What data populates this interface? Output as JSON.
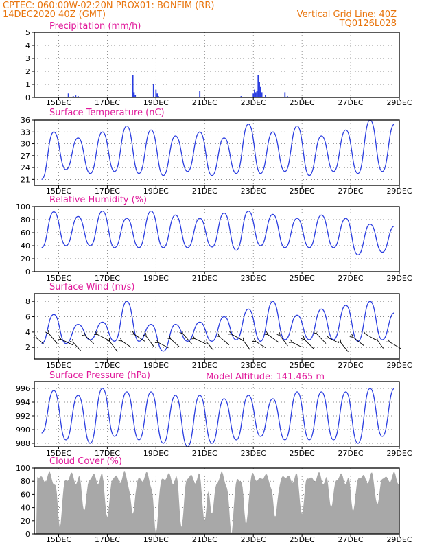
{
  "header": {
    "line1": "CPTEC:   060:00W-02:20N   PROX01: BONFIM (RR)",
    "line2_left": "14DEC2020 40Z (GMT)",
    "line2_right": "Vertical Grid Line: 40Z",
    "code": "TQ0126L028",
    "model_altitude": "Model Altitude: 141.465 m"
  },
  "colors": {
    "header": "#e8740c",
    "title": "#e0189a",
    "series": "#2a3de0",
    "arrow": "#000000",
    "cloud": "#a8a8a8",
    "grid": "#666666"
  },
  "x_ticks": [
    "15DEC",
    "17DEC",
    "19DEC",
    "21DEC",
    "23DEC",
    "25DEC",
    "27DEC",
    "29DEC"
  ],
  "chart_data": [
    {
      "type": "bar",
      "title": "Precipitation (mm/h)",
      "ylim": [
        0,
        5
      ],
      "yticks": [
        "0",
        "1",
        "2",
        "3",
        "4",
        "5"
      ],
      "x_range_days": [
        14.0,
        29.0
      ],
      "points": [
        [
          15.4,
          0.3
        ],
        [
          15.6,
          0.1
        ],
        [
          15.7,
          0.15
        ],
        [
          15.8,
          0.1
        ],
        [
          18.05,
          1.7
        ],
        [
          18.1,
          0.4
        ],
        [
          18.15,
          0.2
        ],
        [
          18.9,
          1.0
        ],
        [
          19.0,
          0.6
        ],
        [
          19.05,
          0.3
        ],
        [
          19.1,
          0.1
        ],
        [
          20.8,
          0.5
        ],
        [
          22.5,
          0.1
        ],
        [
          23.0,
          0.3
        ],
        [
          23.05,
          0.6
        ],
        [
          23.1,
          0.4
        ],
        [
          23.15,
          0.5
        ],
        [
          23.2,
          1.7
        ],
        [
          23.25,
          1.2
        ],
        [
          23.3,
          0.8
        ],
        [
          23.35,
          0.4
        ],
        [
          23.5,
          0.2
        ],
        [
          24.3,
          0.4
        ],
        [
          24.4,
          0.1
        ]
      ]
    },
    {
      "type": "line",
      "title": "Surface Temperature (nC)",
      "ylim": [
        19.5,
        36
      ],
      "yticks": [
        "21",
        "24",
        "27",
        "30",
        "33",
        "36"
      ],
      "mins": [
        21.0,
        23.5,
        22.5,
        23.0,
        22.5,
        22.0,
        23.0,
        22.0,
        22.5,
        22.5,
        23.0,
        22.0,
        23.0,
        22.5,
        23.0
      ],
      "maxs": [
        33.0,
        31.5,
        33.0,
        34.5,
        33.5,
        32.0,
        33.0,
        31.5,
        35.0,
        33.0,
        34.5,
        32.0,
        33.5,
        36.0,
        35.0
      ]
    },
    {
      "type": "line",
      "title": "Relative Humidity (%)",
      "ylim": [
        0,
        100
      ],
      "yticks": [
        "0",
        "20",
        "40",
        "60",
        "80",
        "100"
      ],
      "mins": [
        37,
        40,
        40,
        37,
        37,
        37,
        37,
        38,
        33,
        40,
        37,
        37,
        37,
        26,
        30
      ],
      "maxs": [
        92,
        85,
        93,
        82,
        93,
        87,
        82,
        90,
        93,
        88,
        82,
        87,
        82,
        73,
        70
      ]
    },
    {
      "type": "line",
      "title": "Surface Wind (m/s)",
      "ylim": [
        0.5,
        9
      ],
      "yticks": [
        "2",
        "4",
        "6",
        "8"
      ],
      "mins": [
        2.5,
        2.5,
        3.0,
        2.8,
        2.8,
        1.5,
        2.8,
        2.8,
        3.0,
        2.8,
        3.0,
        3.0,
        3.0,
        2.8,
        3.0
      ],
      "maxs": [
        6.3,
        5.0,
        5.3,
        8.0,
        5.0,
        5.0,
        5.3,
        6.0,
        7.0,
        8.0,
        6.2,
        7.0,
        7.5,
        8.0,
        6.5
      ]
    },
    {
      "type": "line",
      "title": "Surface Pressure (hPa)",
      "ylim": [
        987.5,
        997
      ],
      "yticks": [
        "988",
        "990",
        "992",
        "994",
        "996"
      ],
      "mins": [
        989.5,
        988.5,
        988.0,
        989.0,
        988.5,
        988.0,
        987.5,
        988.0,
        988.5,
        989.0,
        988.5,
        988.5,
        988.5,
        988.0,
        989.0
      ],
      "maxs": [
        995.7,
        995.0,
        996.0,
        995.5,
        995.5,
        995.0,
        995.0,
        994.5,
        995.0,
        994.5,
        995.5,
        995.5,
        995.5,
        996.0,
        996.0
      ]
    },
    {
      "type": "area",
      "title": "Cloud Cover (%)",
      "ylim": [
        0,
        100
      ],
      "yticks": [
        "0",
        "20",
        "40",
        "60",
        "80",
        "100"
      ],
      "dips_days": [
        15.05,
        16.05,
        17.0,
        18.05,
        19.0,
        20.05,
        21.0,
        21.3,
        22.1,
        22.7,
        23.9,
        25.0,
        26.2,
        27.1,
        28.1
      ],
      "dip_levels": [
        10,
        35,
        25,
        30,
        0,
        10,
        20,
        30,
        0,
        15,
        25,
        30,
        40,
        35,
        45
      ]
    }
  ]
}
